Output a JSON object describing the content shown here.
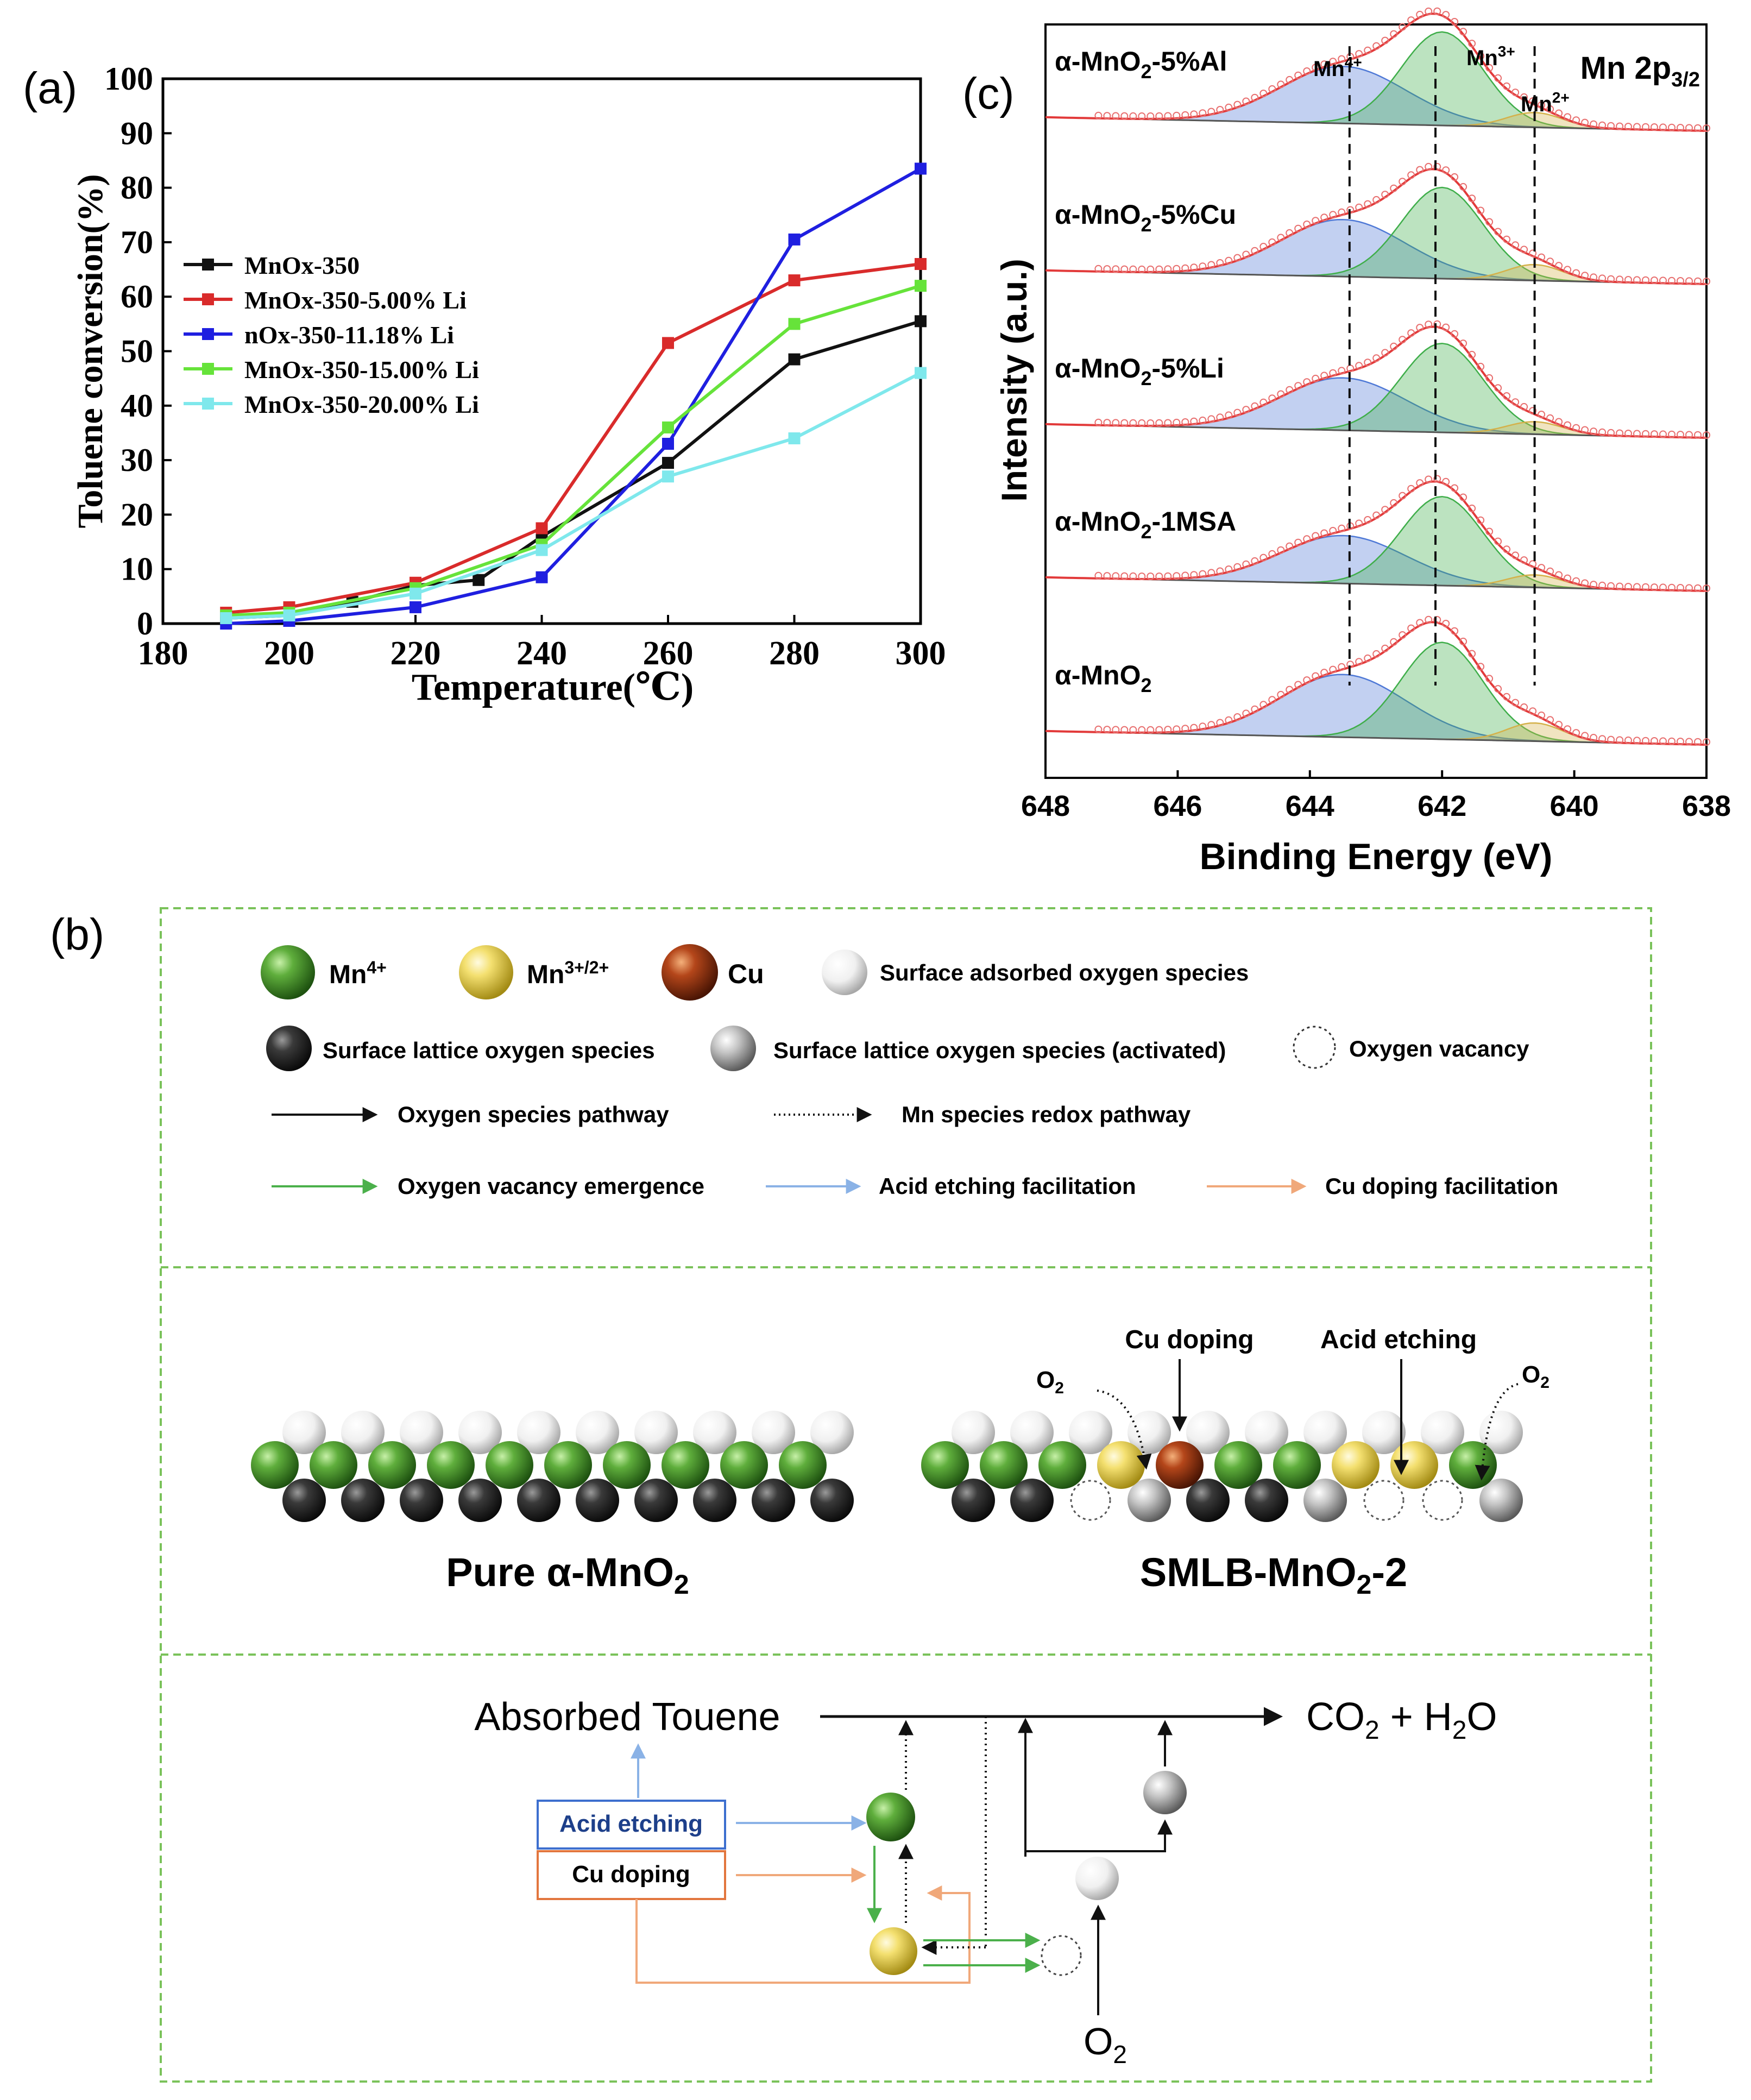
{
  "panel_a": {
    "label": "(a)",
    "chart_data": {
      "type": "line",
      "title": "",
      "xlabel": "Temperature(℃)",
      "ylabel": "Toluene conversion(%)",
      "xlim": [
        180,
        300
      ],
      "ylim": [
        0,
        100
      ],
      "xticks": [
        180,
        200,
        220,
        240,
        260,
        280,
        300
      ],
      "yticks": [
        0,
        10,
        20,
        30,
        40,
        50,
        60,
        70,
        80,
        90,
        100
      ],
      "xtick_labels": [
        "180",
        "200",
        "220",
        "240",
        "260",
        "280",
        "300"
      ],
      "ytick_labels": [
        "0",
        "10",
        "20",
        "30",
        "40",
        "50",
        "60",
        "70",
        "80",
        "90",
        "100"
      ],
      "legend_position": "upper-left",
      "series": [
        {
          "name": "MnOx-350",
          "color": "#111111",
          "x": [
            190,
            200,
            210,
            220,
            230,
            240,
            260,
            280,
            300
          ],
          "y": [
            1,
            1.5,
            4,
            7,
            8,
            16,
            29.5,
            48.5,
            55.5
          ]
        },
        {
          "name": "MnOx-350-5.00% Li",
          "color": "#d92b2b",
          "x": [
            190,
            200,
            220,
            240,
            260,
            280,
            300
          ],
          "y": [
            2,
            3,
            7.5,
            17.5,
            51.5,
            63,
            66
          ]
        },
        {
          "name": "nOx-350-11.18% Li",
          "color": "#1f1fe0",
          "x": [
            190,
            200,
            220,
            240,
            260,
            280,
            300
          ],
          "y": [
            0,
            0.5,
            3,
            8.5,
            33,
            70.5,
            83.5
          ]
        },
        {
          "name": "MnOx-350-15.00% Li",
          "color": "#66e33a",
          "x": [
            190,
            200,
            220,
            240,
            260,
            280,
            300
          ],
          "y": [
            1.5,
            2,
            6.5,
            14.5,
            36,
            55,
            62
          ]
        },
        {
          "name": "MnOx-350-20.00% Li",
          "color": "#7fe8ec",
          "x": [
            190,
            200,
            220,
            240,
            260,
            280,
            300
          ],
          "y": [
            1,
            1.5,
            5.5,
            13.5,
            27,
            34,
            46
          ]
        }
      ]
    }
  },
  "panel_c": {
    "label": "(c)",
    "chart_data": {
      "type": "line",
      "title": "Mn 2p3/2",
      "xlabel": "Binding Energy (eV)",
      "ylabel": "Intensity (a.u.)",
      "xlim": [
        648,
        638
      ],
      "xticks": [
        648,
        646,
        644,
        642,
        640,
        638
      ],
      "xtick_labels": [
        "648",
        "646",
        "644",
        "642",
        "640",
        "638"
      ],
      "reference_lines": [
        {
          "label": "Mn",
          "sup": "4+",
          "x": 643.4
        },
        {
          "label": "Mn",
          "sup": "3+",
          "x": 642.1
        },
        {
          "label": "Mn",
          "sup": "2+",
          "x": 640.6
        }
      ],
      "fit_components": [
        {
          "name": "Mn4+",
          "center": 643.5,
          "color": "#4f79d6"
        },
        {
          "name": "Mn3+",
          "center": 642.0,
          "color": "#3fae4a"
        },
        {
          "name": "Mn2+",
          "center": 640.6,
          "color": "#d4b14a"
        }
      ],
      "series": [
        {
          "name": "α-MnO2-5%Al",
          "pre": "α-MnO",
          "sub": "2",
          "post": "-5%Al",
          "a4": 0.5,
          "a3": 0.82,
          "a2": 0.13
        },
        {
          "name": "α-MnO2-5%Cu",
          "pre": "α-MnO",
          "sub": "2",
          "post": "-5%Cu",
          "a4": 0.5,
          "a3": 0.8,
          "a2": 0.14
        },
        {
          "name": "α-MnO2-5%Li",
          "pre": "α-MnO",
          "sub": "2",
          "post": "-5%Li",
          "a4": 0.46,
          "a3": 0.78,
          "a2": 0.11
        },
        {
          "name": "α-MnO2-1MSA",
          "pre": "α-MnO",
          "sub": "2",
          "post": "-1MSA",
          "a4": 0.42,
          "a3": 0.78,
          "a2": 0.11
        },
        {
          "name": "α-MnO2",
          "pre": "α-MnO",
          "sub": "2",
          "post": "",
          "a4": 0.55,
          "a3": 0.85,
          "a2": 0.16
        }
      ]
    }
  },
  "panel_b": {
    "label": "(b)",
    "legend": {
      "mn4": {
        "base": "Mn",
        "sup": "4+"
      },
      "mn32": {
        "base": "Mn",
        "sup": "3+/2+"
      },
      "cu": "Cu",
      "adsorbed": "Surface adsorbed oxygen species",
      "lattice": "Surface lattice oxygen species",
      "lattice_activated": "Surface lattice oxygen species (activated)",
      "vacancy": "Oxygen vacancy",
      "oxygen_pathway": "Oxygen species pathway",
      "redox_pathway": "Mn species redox pathway",
      "vacancy_emergence": "Oxygen vacancy emergence",
      "acid_facilitation": "Acid etching facilitation",
      "cu_facilitation": "Cu doping facilitation"
    },
    "structures": {
      "pure": {
        "pre": "Pure α-MnO",
        "sub": "2",
        "post": ""
      },
      "smlb": {
        "pre": "SMLB-MnO",
        "sub": "2",
        "post": "-2"
      },
      "cu_doping": "Cu doping",
      "acid_etching": "Acid etching",
      "o2": {
        "base": "O",
        "sub": "2"
      }
    },
    "pathway": {
      "reactant": "Absorbed Touene",
      "product_co": "CO",
      "product_sub1": "2",
      "product_mid": " + H",
      "product_sub2": "2",
      "product_o": "O",
      "acid_box": "Acid etching",
      "cu_box": "Cu doping",
      "o2": {
        "base": "O",
        "sub": "2"
      }
    },
    "colors": {
      "frame": "#7ac25a",
      "acid": "#8ab2e6",
      "cu": "#f0a87a",
      "green_arrow": "#4bb04b"
    }
  }
}
